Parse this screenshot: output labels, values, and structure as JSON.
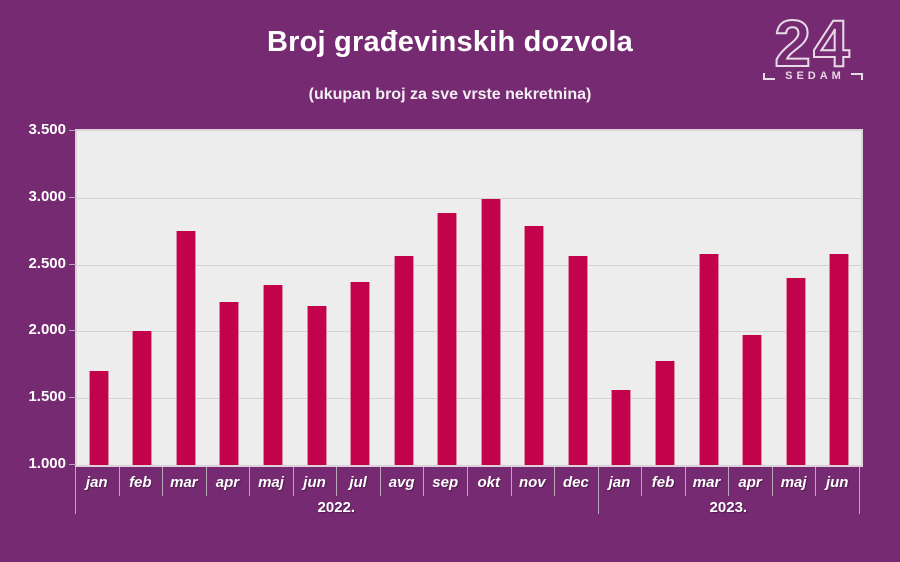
{
  "header": {
    "title": "Broj građevinskih dozvola",
    "subtitle": "(ukupan broj za sve vrste nekretnina)"
  },
  "logo": {
    "number": "24",
    "name": "SEDAM"
  },
  "colors": {
    "background": "#762a71",
    "bar": "#c2034b",
    "bar_edge": "#dc8aa4",
    "plot_background": "#ededed",
    "gridline": "#d3d3d3",
    "axis_tick": "#b9a9b7",
    "text": "#ffffff"
  },
  "chart_data": {
    "type": "bar",
    "title": "Broj građevinskih dozvola",
    "subtitle": "(ukupan broj za sve vrste nekretnina)",
    "categories": [
      "jan",
      "feb",
      "mar",
      "apr",
      "maj",
      "jun",
      "jul",
      "avg",
      "sep",
      "okt",
      "nov",
      "dec",
      "jan",
      "feb",
      "mar",
      "apr",
      "maj",
      "jun"
    ],
    "values": [
      1700,
      2000,
      2750,
      2220,
      2350,
      2190,
      2370,
      2565,
      2890,
      2990,
      2790,
      2565,
      1560,
      1780,
      2580,
      1970,
      2400,
      2580
    ],
    "year_groups": [
      {
        "label": "2022.",
        "start": 0,
        "count": 12
      },
      {
        "label": "2023.",
        "start": 12,
        "count": 6
      }
    ],
    "xlabel": "",
    "ylabel": "",
    "ylim": [
      1000,
      3500
    ],
    "ytick_values": [
      3500,
      3000,
      2500,
      2000,
      1500,
      1000
    ],
    "ytick_labels": [
      "3.500",
      "3.000",
      "2.500",
      "2.000",
      "1.500",
      "1.000"
    ],
    "grid": true,
    "legend": "none"
  }
}
